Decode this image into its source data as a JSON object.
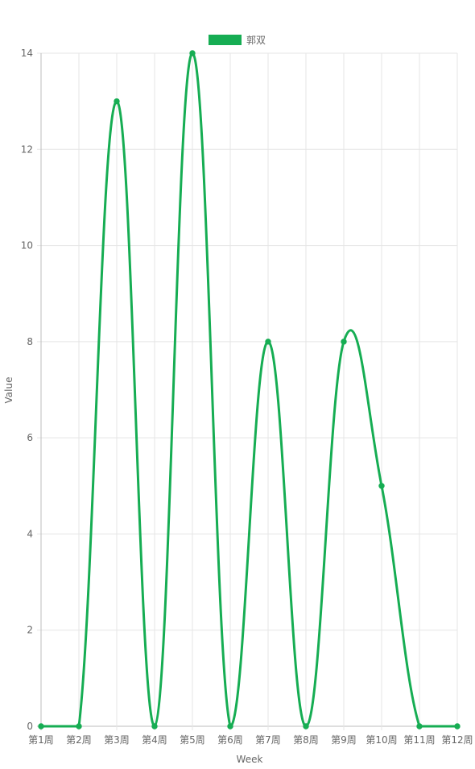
{
  "chart_data": {
    "type": "line",
    "categories": [
      "第1周",
      "第2周",
      "第3周",
      "第4周",
      "第5周",
      "第6周",
      "第7周",
      "第8周",
      "第9周",
      "第10周",
      "第11周",
      "第12周"
    ],
    "series": [
      {
        "name": "郭双",
        "values": [
          0,
          0,
          13,
          0,
          14,
          0,
          8,
          0,
          8,
          5,
          0,
          0
        ],
        "color": "#16ad53"
      }
    ],
    "xlabel": "Week",
    "ylabel": "Value",
    "ylim": [
      0,
      14
    ],
    "yticks": [
      0,
      2,
      4,
      6,
      8,
      10,
      12,
      14
    ],
    "grid": true,
    "legend_position": "top"
  }
}
